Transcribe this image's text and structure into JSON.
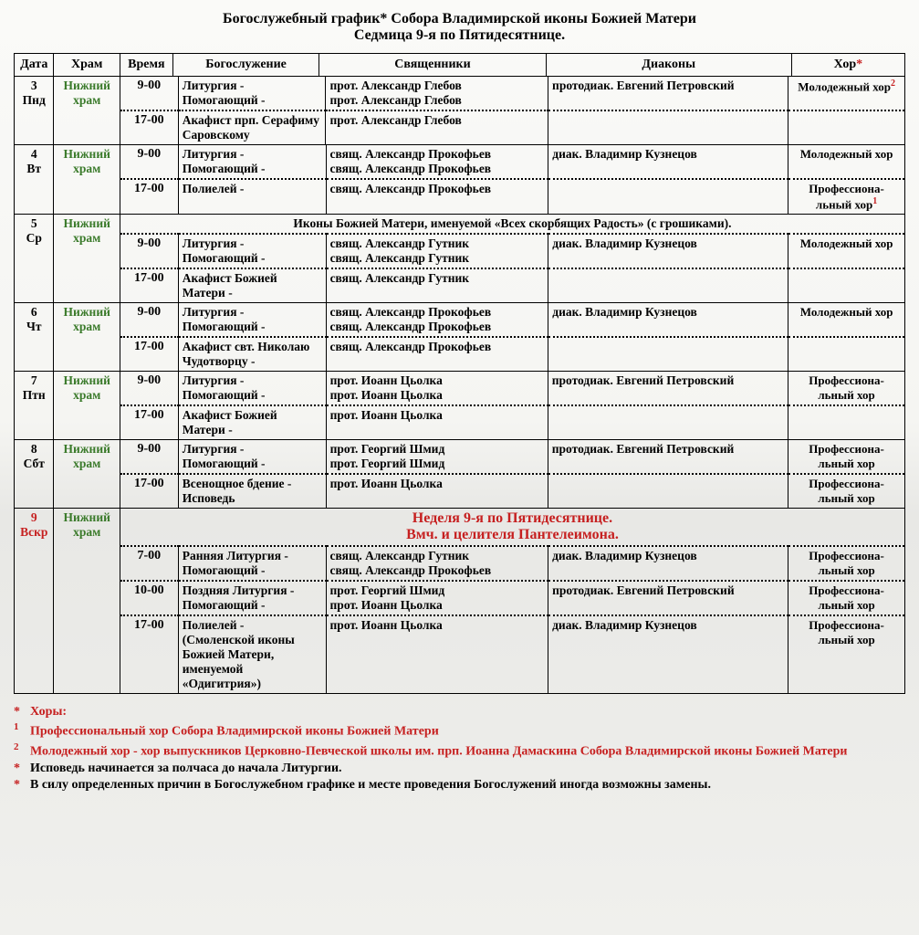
{
  "title_line1": "Богослужебный график* Собора Владимирской иконы Божией Матери",
  "title_line2": "Седмица 9-я по Пятидесятнице.",
  "headers": {
    "date": "Дата",
    "temple": "Храм",
    "time": "Время",
    "service": "Богослужение",
    "priests": "Священники",
    "deacons": "Диаконы",
    "choir": "Хор"
  },
  "choir_star": "*",
  "temple_label": "Нижний храм",
  "days": [
    {
      "date_num": "3",
      "date_wd": "Пнд",
      "temple_red": false,
      "rows": [
        {
          "time": "9-00",
          "service": "Литургия -\nПомогающий -",
          "priests": "прот. Александр Глебов\nпрот. Александр Глебов",
          "deacons": "протодиак. Евгений Петровский",
          "choir": "Молодежный хор",
          "choir_sup": "2"
        },
        {
          "time": "17-00",
          "service": "Акафист прп. Серафиму Саровскому",
          "priests": "прот. Александр Глебов",
          "deacons": "",
          "choir": ""
        }
      ]
    },
    {
      "date_num": "4",
      "date_wd": "Вт",
      "temple_red": false,
      "rows": [
        {
          "time": "9-00",
          "service": "Литургия -\nПомогающий -",
          "priests": "свящ. Александр Прокофьев\nсвящ. Александр Прокофьев",
          "deacons": "диак. Владимир Кузнецов",
          "choir": "Молодежный хор"
        },
        {
          "time": "17-00",
          "service": "Полиелей -",
          "priests": "свящ. Александр Прокофьев",
          "deacons": "",
          "choir": "Профессиона-льный хор",
          "choir_sup": "1"
        }
      ]
    },
    {
      "date_num": "5",
      "date_wd": "Ср",
      "temple_red": false,
      "banner": "Иконы Божией Матери, именуемой «Всех скорбящих Радость» (с грошиками).",
      "rows": [
        {
          "time": "9-00",
          "service": "Литургия -\nПомогающий -",
          "priests": "свящ. Александр Гутник\nсвящ. Александр Гутник",
          "deacons": "диак. Владимир Кузнецов",
          "choir": "Молодежный хор"
        },
        {
          "time": "17-00",
          "service": "Акафист Божией Матери -",
          "priests": "свящ. Александр Гутник",
          "deacons": "",
          "choir": ""
        }
      ]
    },
    {
      "date_num": "6",
      "date_wd": "Чт",
      "temple_red": false,
      "rows": [
        {
          "time": "9-00",
          "service": "Литургия -\nПомогающий -",
          "priests": "свящ. Александр Прокофьев\nсвящ. Александр Прокофьев",
          "deacons": "диак. Владимир Кузнецов",
          "choir": "Молодежный хор"
        },
        {
          "time": "17-00",
          "service": "Акафист свт. Николаю Чудотворцу -",
          "priests": "свящ. Александр Прокофьев",
          "deacons": "",
          "choir": ""
        }
      ]
    },
    {
      "date_num": "7",
      "date_wd": "Птн",
      "temple_red": false,
      "rows": [
        {
          "time": "9-00",
          "service": "Литургия -\nПомогающий -",
          "priests": "прот. Иоанн Цьолка\nпрот. Иоанн Цьолка",
          "deacons": "протодиак. Евгений Петровский",
          "choir": "Профессиона-льный хор"
        },
        {
          "time": "17-00",
          "service": "Акафист Божией Матери -",
          "priests": "прот. Иоанн Цьолка",
          "deacons": "",
          "choir": ""
        }
      ]
    },
    {
      "date_num": "8",
      "date_wd": "Сбт",
      "temple_red": false,
      "rows": [
        {
          "time": "9-00",
          "service": "Литургия -\nПомогающий -",
          "priests": "прот. Георгий Шмид\nпрот. Георгий Шмид",
          "deacons": "протодиак. Евгений Петровский",
          "choir": "Профессиона-льный хор"
        },
        {
          "time": "17-00",
          "service": "Всенощное бдение - Исповедь",
          "priests": "прот. Иоанн Цьолка",
          "deacons": "",
          "choir": "Профессиона-льный хор"
        }
      ]
    },
    {
      "date_num": "9",
      "date_wd": "Вскр",
      "temple_red": false,
      "date_red": true,
      "banner_red1": "Неделя 9-я по Пятидесятнице.",
      "banner_red2": "Вмч. и целителя Пантелеимона.",
      "rows": [
        {
          "time": "7-00",
          "service": "Ранняя Литургия -\nПомогающий -",
          "priests": "свящ. Александр Гутник\nсвящ. Александр Прокофьев",
          "deacons": "диак. Владимир Кузнецов",
          "choir": "Профессиона-льный хор"
        },
        {
          "time": "10-00",
          "service": "Поздняя Литургия -\nПомогающий -",
          "priests": "прот. Георгий Шмид\nпрот. Иоанн Цьолка",
          "deacons": "протодиак. Евгений Петровский",
          "choir": "Профессиона-льный хор"
        },
        {
          "time": "17-00",
          "service": "Полиелей -\n(Смоленской иконы Божией Матери, именуемой «Одигитрия»)",
          "priests": "прот. Иоанн Цьолка",
          "deacons": "диак. Владимир Кузнецов",
          "choir": "Профессиона-льный хор"
        }
      ]
    }
  ],
  "notes": {
    "heading": "Хоры:",
    "fn1": "Профессиональный хор Собора Владимирской иконы Божией Матери",
    "fn2": "Молодежный хор - хор выпускников Церковно-Певческой школы им. прп. Иоанна Дамаскина Собора Владимирской иконы Божией Матери",
    "b1": "Исповедь начинается за полчаса до начала Литургии.",
    "b2": "В силу определенных причин в Богослужебном графике и месте проведения Богослужений иногда возможны замены."
  }
}
